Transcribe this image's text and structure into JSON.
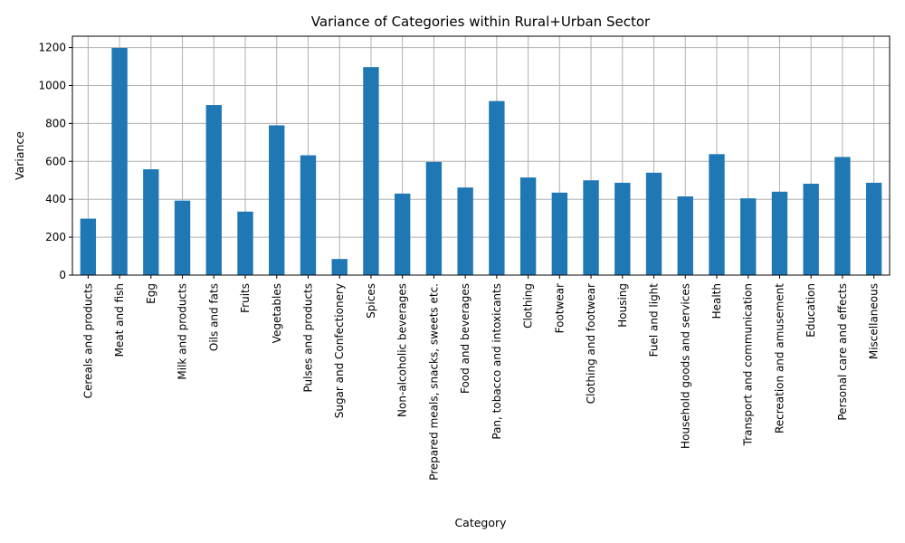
{
  "chart_data": {
    "type": "bar",
    "title": "Variance of Categories within Rural+Urban Sector",
    "xlabel": "Category",
    "ylabel": "Variance",
    "ylim": [
      0,
      1260
    ],
    "yticks": [
      0,
      200,
      400,
      600,
      800,
      1000,
      1200
    ],
    "grid": true,
    "bar_color": "#1f77b4",
    "categories": [
      "Cereals and products",
      "Meat and fish",
      "Egg",
      "Milk and products",
      "Oils and fats",
      "Fruits",
      "Vegetables",
      "Pulses and products",
      "Sugar and Confectionery",
      "Spices",
      "Non-alcoholic beverages",
      "Prepared meals, snacks, sweets etc.",
      "Food and beverages",
      "Pan, tobacco and intoxicants",
      "Clothing",
      "Footwear",
      "Clothing and footwear",
      "Housing",
      "Fuel and light",
      "Household goods and services",
      "Health",
      "Transport and communication",
      "Recreation and amusement",
      "Education",
      "Personal care and effects",
      "Miscellaneous"
    ],
    "values": [
      298,
      1198,
      558,
      393,
      897,
      335,
      790,
      632,
      85,
      1097,
      430,
      597,
      462,
      918,
      515,
      435,
      500,
      487,
      540,
      415,
      638,
      405,
      440,
      482,
      623,
      487
    ]
  }
}
